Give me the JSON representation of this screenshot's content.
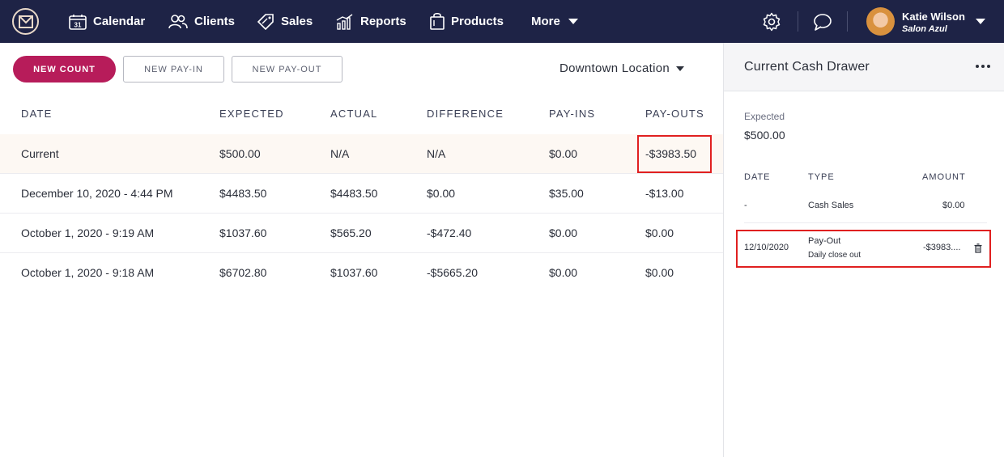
{
  "nav": {
    "items": [
      {
        "label": "Calendar",
        "icon": "calendar-icon"
      },
      {
        "label": "Clients",
        "icon": "clients-icon"
      },
      {
        "label": "Sales",
        "icon": "tag-icon"
      },
      {
        "label": "Reports",
        "icon": "chart-icon"
      },
      {
        "label": "Products",
        "icon": "bag-icon"
      },
      {
        "label": "More",
        "icon": "chevron-down-icon"
      }
    ],
    "calendar_day": "31",
    "user_name": "Katie Wilson",
    "user_salon": "Salon Azul"
  },
  "toolbar": {
    "new_count": "NEW COUNT",
    "new_pay_in": "NEW PAY-IN",
    "new_pay_out": "NEW PAY-OUT",
    "location": "Downtown Location"
  },
  "table": {
    "headers": [
      "DATE",
      "EXPECTED",
      "ACTUAL",
      "DIFFERENCE",
      "PAY-INS",
      "PAY-OUTS"
    ],
    "rows": [
      [
        "Current",
        "$500.00",
        "N/A",
        "N/A",
        "$0.00",
        "-$3983.50"
      ],
      [
        "December 10, 2020 - 4:44 PM",
        "$4483.50",
        "$4483.50",
        "$0.00",
        "$35.00",
        "-$13.00"
      ],
      [
        "October 1, 2020 - 9:19 AM",
        "$1037.60",
        "$565.20",
        "-$472.40",
        "$0.00",
        "$0.00"
      ],
      [
        "October 1, 2020 - 9:18 AM",
        "$6702.80",
        "$1037.60",
        "-$5665.20",
        "$0.00",
        "$0.00"
      ]
    ]
  },
  "panel": {
    "title": "Current Cash Drawer",
    "expected_label": "Expected",
    "expected_value": "$500.00",
    "headers": [
      "DATE",
      "TYPE",
      "AMOUNT"
    ],
    "rows": [
      {
        "date": "-",
        "type": "Cash Sales",
        "note": "",
        "amount": "$0.00"
      },
      {
        "date": "12/10/2020",
        "type": "Pay-Out",
        "note": "Daily close out",
        "amount": "-$3983...."
      }
    ]
  },
  "colors": {
    "nav_bg": "#1e2346",
    "primary": "#b71c5a",
    "highlight": "#e02020"
  }
}
